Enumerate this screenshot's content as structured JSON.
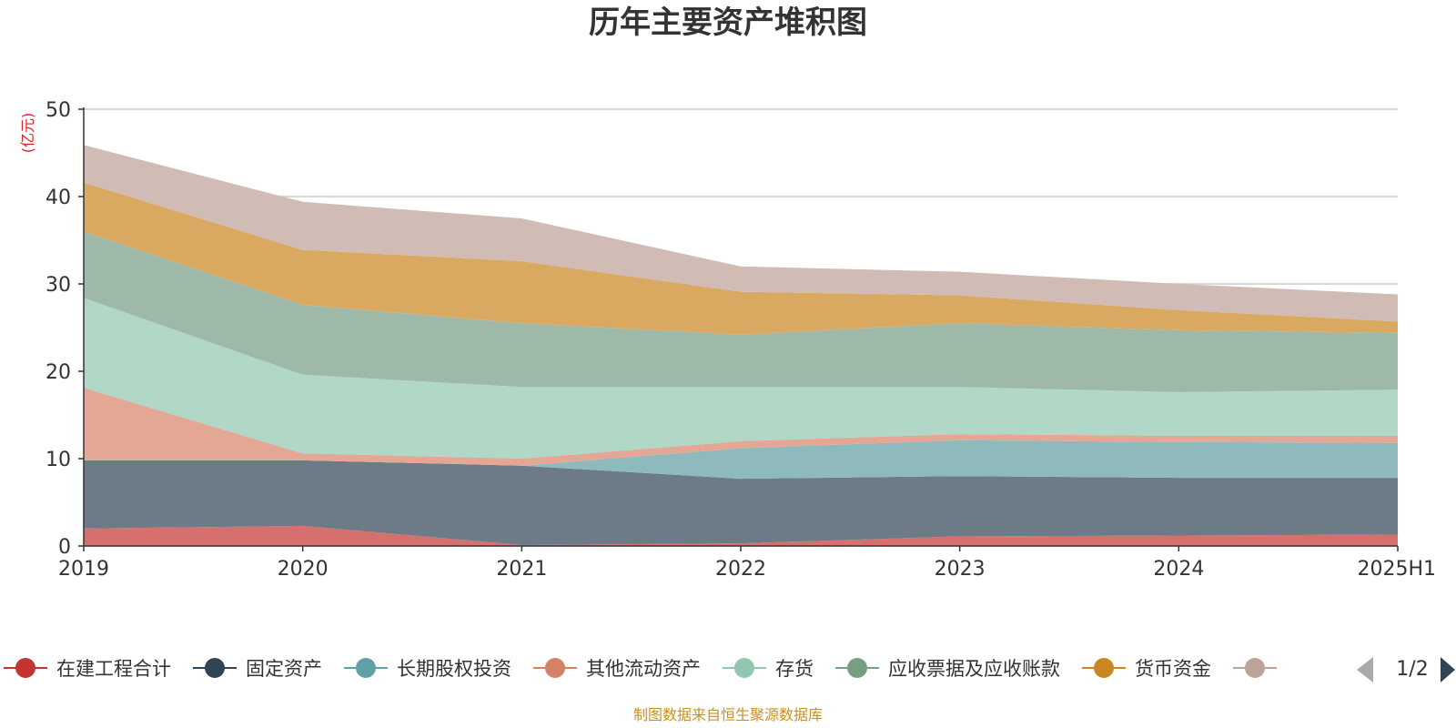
{
  "chart_data": {
    "type": "area",
    "stacked": true,
    "title": "历年主要资产堆积图",
    "unit_label": "(亿元)",
    "xlabel": "",
    "ylabel": "",
    "categories": [
      "2019",
      "2020",
      "2021",
      "2022",
      "2023",
      "2024",
      "2025H1"
    ],
    "ylim": [
      0,
      50
    ],
    "yticks": [
      "0",
      "10",
      "20",
      "30",
      "40",
      "50"
    ],
    "grid": true,
    "legend_position": "bottom",
    "series": [
      {
        "name": "在建工程合计",
        "color": "#c23531",
        "fill": "#d5706e",
        "values": [
          2.0,
          2.3,
          0.1,
          0.3,
          1.1,
          1.2,
          1.3
        ]
      },
      {
        "name": "固定资产",
        "color": "#2f4554",
        "fill": "#6d7b87",
        "values": [
          7.8,
          7.5,
          9.1,
          7.4,
          6.9,
          6.6,
          6.5
        ]
      },
      {
        "name": "长期股权投资",
        "color": "#61a0a8",
        "fill": "#8ebabe",
        "values": [
          0.0,
          0.0,
          0.0,
          3.5,
          4.1,
          4.1,
          4.0
        ]
      },
      {
        "name": "其他流动资产",
        "color": "#d48265",
        "fill": "#e4a795",
        "values": [
          8.3,
          0.8,
          0.8,
          0.8,
          0.7,
          0.7,
          0.8
        ]
      },
      {
        "name": "存货",
        "color": "#91c7ae",
        "fill": "#b1d7c6",
        "values": [
          10.3,
          9.0,
          8.2,
          6.2,
          5.4,
          5.0,
          5.3
        ]
      },
      {
        "name": "应收票据及应收账款",
        "color": "#749f83",
        "fill": "#9eb9a7",
        "values": [
          7.6,
          8.0,
          7.3,
          6.0,
          7.3,
          7.1,
          6.5
        ]
      },
      {
        "name": "货币资金",
        "color": "#ca8622",
        "fill": "#d9a962",
        "values": [
          5.6,
          6.3,
          7.1,
          4.9,
          3.2,
          2.3,
          1.3
        ]
      },
      {
        "name": "",
        "color": "#bda29a",
        "fill": "#d1bbb5",
        "values": [
          4.3,
          5.5,
          4.9,
          2.9,
          2.7,
          3.0,
          3.1
        ]
      }
    ]
  },
  "legend": {
    "page_indicator": "1/2",
    "prev_icon": "triangle-left-icon",
    "next_icon": "triangle-right-icon"
  },
  "footer": {
    "source": "制图数据来自恒生聚源数据库"
  }
}
